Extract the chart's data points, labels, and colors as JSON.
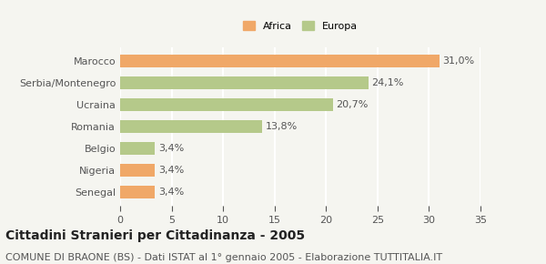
{
  "categories": [
    "Marocco",
    "Serbia/Montenegro",
    "Ucraina",
    "Romania",
    "Belgio",
    "Nigeria",
    "Senegal"
  ],
  "values": [
    31.0,
    24.1,
    20.7,
    13.8,
    3.4,
    3.4,
    3.4
  ],
  "labels": [
    "31,0%",
    "24,1%",
    "20,7%",
    "13,8%",
    "3,4%",
    "3,4%",
    "3,4%"
  ],
  "colors": [
    "#f0a868",
    "#b5c98a",
    "#b5c98a",
    "#b5c98a",
    "#b5c98a",
    "#f0a868",
    "#f0a868"
  ],
  "legend": [
    {
      "label": "Africa",
      "color": "#f0a868"
    },
    {
      "label": "Europa",
      "color": "#b5c98a"
    }
  ],
  "xlim": [
    0,
    35
  ],
  "xticks": [
    0,
    5,
    10,
    15,
    20,
    25,
    30,
    35
  ],
  "title": "Cittadini Stranieri per Cittadinanza - 2005",
  "subtitle": "COMUNE DI BRAONE (BS) - Dati ISTAT al 1° gennaio 2005 - Elaborazione TUTTITALIA.IT",
  "background_color": "#f5f5f0",
  "bar_edge_color": "none",
  "grid_color": "#ffffff",
  "title_fontsize": 10,
  "subtitle_fontsize": 8,
  "label_fontsize": 8,
  "tick_fontsize": 8
}
